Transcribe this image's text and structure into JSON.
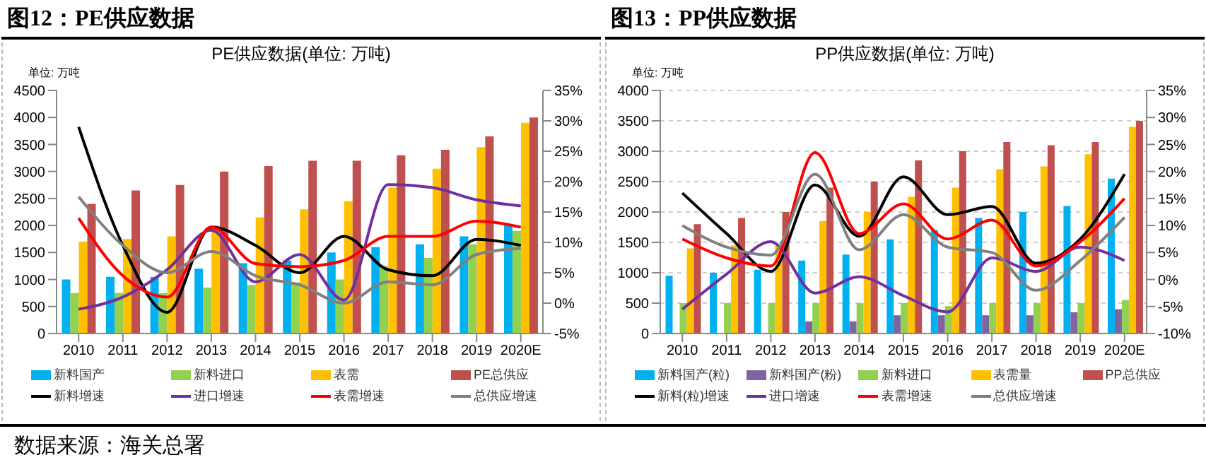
{
  "chart_data": [
    {
      "type": "bar",
      "title": "图12：PE供应数据",
      "subtitle": "PE供应数据(单位: 万吨)",
      "ylabel": "单位: 万吨",
      "categories": [
        "2010",
        "2011",
        "2012",
        "2013",
        "2014",
        "2015",
        "2016",
        "2017",
        "2018",
        "2019",
        "2020E"
      ],
      "series": [
        {
          "name": "新料国产",
          "color": "#00b0f0",
          "values": [
            1000,
            1050,
            1050,
            1200,
            1300,
            1350,
            1500,
            1600,
            1650,
            1800,
            2000
          ]
        },
        {
          "name": "新料进口",
          "color": "#92d050",
          "values": [
            750,
            750,
            750,
            850,
            900,
            950,
            1000,
            1250,
            1400,
            1650,
            1900
          ]
        },
        {
          "name": "表需",
          "color": "#ffc000",
          "values": [
            1700,
            1750,
            1800,
            2000,
            2150,
            2300,
            2450,
            2700,
            3050,
            3450,
            3900
          ]
        },
        {
          "name": "PE总供应",
          "color": "#c0504d",
          "values": [
            2400,
            2650,
            2750,
            3000,
            3100,
            3200,
            3200,
            3300,
            3400,
            3650,
            4000
          ]
        },
        {
          "name": "新料增速",
          "type": "line",
          "axis": "y2",
          "color": "#000000",
          "values": [
            29,
            9.5,
            -1.5,
            12.5,
            9.5,
            5,
            11,
            5.5,
            4.5,
            10.5,
            9.5
          ]
        },
        {
          "name": "进口增速",
          "type": "line",
          "axis": "y2",
          "color": "#7030a0",
          "values": [
            -1,
            1,
            5.5,
            12,
            3.5,
            8,
            0.5,
            19.5,
            19,
            17,
            16
          ]
        },
        {
          "name": "表需增速",
          "type": "line",
          "axis": "y2",
          "color": "#ff0000",
          "values": [
            14,
            4.5,
            1,
            12.5,
            6.5,
            6,
            7,
            11,
            11,
            13.5,
            12.5
          ]
        },
        {
          "name": "总供应增速",
          "type": "line",
          "axis": "y2",
          "color": "#808080",
          "values": [
            17.5,
            9.5,
            5,
            8.5,
            4.5,
            3,
            0,
            3.5,
            3,
            8,
            9
          ]
        }
      ],
      "ylim": [
        0,
        4500
      ],
      "yticks": [
        0,
        500,
        1000,
        1500,
        2000,
        2500,
        3000,
        3500,
        4000,
        4500
      ],
      "y2lim": [
        -5,
        35
      ],
      "y2ticks": [
        {
          "value": -5,
          "label": "-5%"
        },
        {
          "value": 0,
          "label": "0%"
        },
        {
          "value": 5,
          "label": "5%"
        },
        {
          "value": 10,
          "label": "10%"
        },
        {
          "value": 15,
          "label": "15%"
        },
        {
          "value": 20,
          "label": "20%"
        },
        {
          "value": 25,
          "label": "25%"
        },
        {
          "value": 30,
          "label": "30%"
        },
        {
          "value": 35,
          "label": "35%"
        }
      ],
      "grid": false,
      "legend": "bottom",
      "marker": "none",
      "line_style": "solid",
      "annotations": [
        "数据来源：海关总署"
      ]
    },
    {
      "type": "bar",
      "title": "图13：PP供应数据",
      "subtitle": "PP供应数据(单位: 万吨)",
      "ylabel": "单位: 万吨",
      "categories": [
        "2010",
        "2011",
        "2012",
        "2013",
        "2014",
        "2015",
        "2016",
        "2017",
        "2018",
        "2019",
        "2020E"
      ],
      "series": [
        {
          "name": "新料国产(粒)",
          "color": "#00b0f0",
          "values": [
            950,
            1000,
            1050,
            1200,
            1300,
            1550,
            1700,
            1900,
            2000,
            2100,
            2550
          ]
        },
        {
          "name": "新料国产(粉)",
          "color": "#8064a2",
          "values": [
            null,
            null,
            null,
            200,
            200,
            300,
            300,
            300,
            300,
            350,
            400
          ]
        },
        {
          "name": "新料进口",
          "color": "#92d050",
          "values": [
            500,
            500,
            500,
            500,
            500,
            500,
            450,
            500,
            500,
            500,
            550
          ]
        },
        {
          "name": "表需量",
          "color": "#ffc000",
          "values": [
            1400,
            1450,
            1450,
            1850,
            2000,
            2250,
            2400,
            2700,
            2750,
            2950,
            3400
          ]
        },
        {
          "name": "PP总供应",
          "color": "#c0504d",
          "values": [
            1800,
            1900,
            2000,
            2400,
            2500,
            2850,
            3000,
            3150,
            3100,
            3150,
            3500
          ]
        },
        {
          "name": "新料(粒)增速",
          "type": "line",
          "axis": "y2",
          "color": "#000000",
          "values": [
            16,
            8.5,
            1.5,
            17.5,
            8,
            19,
            12,
            13.5,
            3,
            7.5,
            19.5
          ]
        },
        {
          "name": "进口增速",
          "type": "line",
          "axis": "y2",
          "color": "#7030a0",
          "values": [
            -5.5,
            1,
            7,
            -2.5,
            0.5,
            -3,
            -6,
            4,
            1.5,
            6,
            3.5
          ]
        },
        {
          "name": "表需增速",
          "type": "line",
          "axis": "y2",
          "color": "#ff0000",
          "values": [
            7.5,
            4,
            2.5,
            23.5,
            8.5,
            14,
            7.5,
            11,
            2.5,
            7,
            15
          ]
        },
        {
          "name": "总供应增速",
          "type": "line",
          "axis": "y2",
          "color": "#808080",
          "values": [
            10,
            6,
            4.5,
            19.5,
            5.5,
            12,
            6,
            5,
            -2,
            3.5,
            11.5
          ]
        }
      ],
      "ylim": [
        0,
        4000
      ],
      "yticks": [
        0,
        500,
        1000,
        1500,
        2000,
        2500,
        3000,
        3500,
        4000
      ],
      "y2lim": [
        -10,
        35
      ],
      "y2ticks": [
        {
          "value": -10,
          "label": "-10%"
        },
        {
          "value": -5,
          "label": "-5%"
        },
        {
          "value": 0,
          "label": "0%"
        },
        {
          "value": 5,
          "label": "5%"
        },
        {
          "value": 10,
          "label": "10%"
        },
        {
          "value": 15,
          "label": "15%"
        },
        {
          "value": 20,
          "label": "20%"
        },
        {
          "value": 25,
          "label": "25%"
        },
        {
          "value": 30,
          "label": "30%"
        },
        {
          "value": 35,
          "label": "35%"
        }
      ],
      "grid": "y",
      "legend": "bottom",
      "marker": "none",
      "line_style": "solid"
    }
  ]
}
